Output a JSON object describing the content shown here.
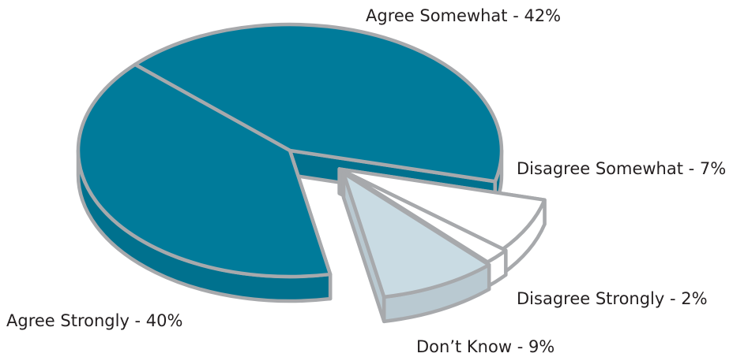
{
  "chart_data": {
    "type": "pie",
    "title": "",
    "labels": [
      "Agree Somewhat",
      "Disagree Somewhat",
      "Disagree Strongly",
      "Don’t Know",
      "Agree Strongly"
    ],
    "values": [
      42,
      7,
      2,
      9,
      40
    ],
    "unit": "%",
    "exploded": [
      "Disagree Somewhat",
      "Disagree Strongly",
      "Don’t Know"
    ],
    "colors": {
      "Agree Somewhat": "#007b9a",
      "Disagree Somewhat": "#ffffff",
      "Disagree Strongly": "#ffffff",
      "Don’t Know": "#c9dbe3",
      "Agree Strongly": "#007b9a"
    },
    "outline_color": "#a7a9ac",
    "style": "3d",
    "data_labels": [
      "Agree Somewhat - 42%",
      "Disagree Somewhat - 7%",
      "Disagree Strongly - 2%",
      "Don’t Know - 9%",
      "Agree Strongly - 40%"
    ]
  }
}
